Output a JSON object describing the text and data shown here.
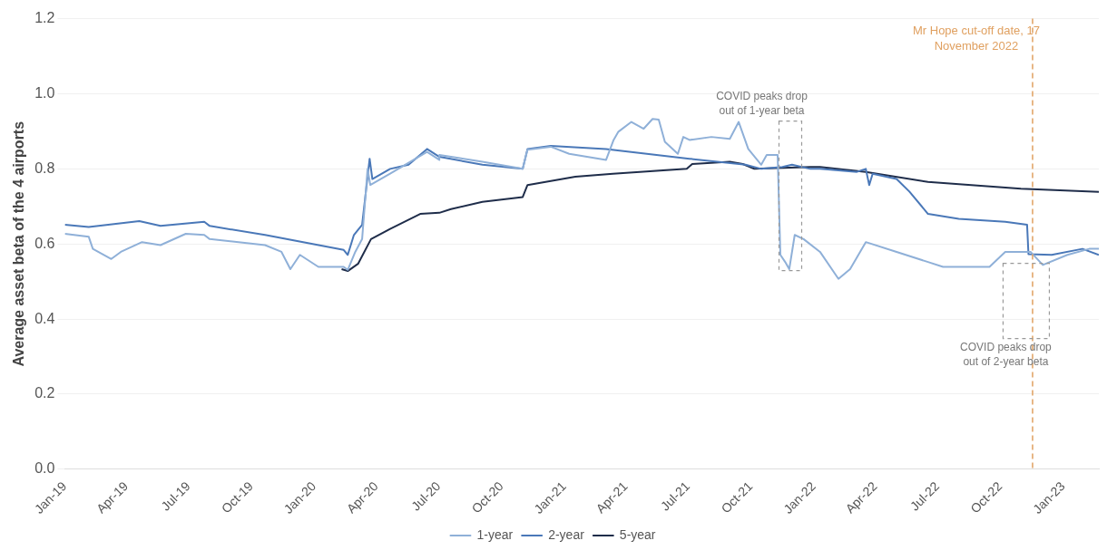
{
  "chart_data": {
    "type": "line",
    "ylabel": "Average asset beta of the 4 airports",
    "xlim": [
      "2019-01-01",
      "2023-02-22"
    ],
    "xticks": [
      {
        "value": "2019-01-01",
        "label": "Jan-19"
      },
      {
        "value": "2019-04-01",
        "label": "Apr-19"
      },
      {
        "value": "2019-07-01",
        "label": "Jul-19"
      },
      {
        "value": "2019-10-01",
        "label": "Oct-19"
      },
      {
        "value": "2020-01-01",
        "label": "Jan-20"
      },
      {
        "value": "2020-04-01",
        "label": "Apr-20"
      },
      {
        "value": "2020-07-01",
        "label": "Jul-20"
      },
      {
        "value": "2020-10-01",
        "label": "Oct-20"
      },
      {
        "value": "2021-01-01",
        "label": "Jan-21"
      },
      {
        "value": "2021-04-01",
        "label": "Apr-21"
      },
      {
        "value": "2021-07-01",
        "label": "Jul-21"
      },
      {
        "value": "2021-10-01",
        "label": "Oct-21"
      },
      {
        "value": "2022-01-01",
        "label": "Jan-22"
      },
      {
        "value": "2022-04-01",
        "label": "Apr-22"
      },
      {
        "value": "2022-07-01",
        "label": "Jul-22"
      },
      {
        "value": "2022-10-01",
        "label": "Oct-22"
      },
      {
        "value": "2023-01-01",
        "label": "Jan-23"
      }
    ],
    "ylim": [
      0,
      1.2
    ],
    "yticks": [
      {
        "value": 0,
        "label": "0.0"
      },
      {
        "value": 0.2,
        "label": "0.2"
      },
      {
        "value": 0.4,
        "label": "0.4"
      },
      {
        "value": 0.6,
        "label": "0.6"
      },
      {
        "value": 0.8,
        "label": "0.8"
      },
      {
        "value": 1,
        "label": "1.0"
      },
      {
        "value": 1.2,
        "label": "1.2"
      }
    ],
    "grid": "y",
    "legend": "bottom",
    "marker": "none",
    "series": [
      {
        "name": "1-year",
        "color": "#8fb0d8",
        "x": [
          "2019-01-01",
          "2019-02-05",
          "2019-02-11",
          "2019-03-10",
          "2019-03-24",
          "2019-04-24",
          "2019-05-21",
          "2019-06-27",
          "2019-07-24",
          "2019-08-01",
          "2019-10-21",
          "2019-11-14",
          "2019-11-27",
          "2019-12-11",
          "2020-01-07",
          "2020-02-13",
          "2020-02-19",
          "2020-03-01",
          "2020-03-11",
          "2020-03-19",
          "2020-03-23",
          "2020-04-21",
          "2020-06-14",
          "2020-07-02",
          "2020-07-02",
          "2020-09-03",
          "2020-11-01",
          "2020-11-08",
          "2020-12-12",
          "2021-01-08",
          "2021-03-03",
          "2021-03-14",
          "2021-03-21",
          "2021-04-09",
          "2021-04-27",
          "2021-05-10",
          "2021-05-19",
          "2021-05-28",
          "2021-06-16",
          "2021-06-24",
          "2021-07-03",
          "2021-08-04",
          "2021-08-31",
          "2021-09-13",
          "2021-09-27",
          "2021-10-16",
          "2021-10-24",
          "2021-11-09",
          "2021-11-13",
          "2021-11-20",
          "2021-11-26",
          "2021-12-04",
          "2021-12-17",
          "2022-01-10",
          "2022-02-06",
          "2022-02-23",
          "2022-03-18",
          "2022-05-02",
          "2022-06-17",
          "2022-07-09",
          "2022-09-15",
          "2022-10-08",
          "2022-11-14",
          "2022-12-02",
          "2023-01-07",
          "2023-02-08",
          "2023-02-22"
        ],
        "values": [
          0.627,
          0.619,
          0.587,
          0.56,
          0.579,
          0.605,
          0.597,
          0.627,
          0.624,
          0.613,
          0.597,
          0.579,
          0.533,
          0.571,
          0.539,
          0.539,
          0.531,
          0.579,
          0.613,
          0.8,
          0.757,
          0.787,
          0.845,
          0.824,
          0.837,
          0.819,
          0.8,
          0.851,
          0.859,
          0.84,
          0.824,
          0.877,
          0.899,
          0.925,
          0.907,
          0.933,
          0.931,
          0.872,
          0.84,
          0.885,
          0.877,
          0.885,
          0.88,
          0.925,
          0.853,
          0.811,
          0.837,
          0.837,
          0.571,
          0.552,
          0.533,
          0.624,
          0.613,
          0.579,
          0.507,
          0.533,
          0.605,
          0.579,
          0.552,
          0.539,
          0.539,
          0.579,
          0.579,
          0.544,
          0.571,
          0.587,
          0.587
        ]
      },
      {
        "name": "2-year",
        "color": "#4a78b8",
        "x": [
          "2019-01-01",
          "2019-02-05",
          "2019-04-20",
          "2019-05-21",
          "2019-07-24",
          "2019-08-01",
          "2019-10-21",
          "2020-02-13",
          "2020-02-19",
          "2020-02-28",
          "2020-03-11",
          "2020-03-22",
          "2020-03-26",
          "2020-04-21",
          "2020-05-18",
          "2020-06-14",
          "2020-07-02",
          "2020-09-03",
          "2020-11-01",
          "2020-11-08",
          "2020-12-12",
          "2021-03-03",
          "2021-07-03",
          "2021-09-23",
          "2021-10-16",
          "2021-11-16",
          "2021-11-30",
          "2021-12-27",
          "2022-01-10",
          "2022-03-05",
          "2022-03-18",
          "2022-03-23",
          "2022-03-28",
          "2022-05-02",
          "2022-05-21",
          "2022-06-17",
          "2022-08-01",
          "2022-10-08",
          "2022-11-09",
          "2022-11-11",
          "2022-12-15",
          "2023-01-29",
          "2023-02-22"
        ],
        "values": [
          0.651,
          0.645,
          0.661,
          0.648,
          0.659,
          0.648,
          0.624,
          0.584,
          0.571,
          0.624,
          0.651,
          0.827,
          0.773,
          0.8,
          0.811,
          0.853,
          0.832,
          0.811,
          0.8,
          0.853,
          0.861,
          0.853,
          0.827,
          0.811,
          0.8,
          0.805,
          0.811,
          0.8,
          0.8,
          0.792,
          0.8,
          0.757,
          0.787,
          0.773,
          0.739,
          0.68,
          0.667,
          0.659,
          0.651,
          0.573,
          0.571,
          0.587,
          0.571
        ]
      },
      {
        "name": "5-year",
        "color": "#1f2d4a",
        "x": [
          "2020-02-10",
          "2020-02-19",
          "2020-03-05",
          "2020-03-24",
          "2020-04-21",
          "2020-06-04",
          "2020-07-02",
          "2020-07-19",
          "2020-09-03",
          "2020-11-01",
          "2020-11-08",
          "2021-01-17",
          "2021-03-13",
          "2021-06-29",
          "2021-07-07",
          "2021-08-31",
          "2021-09-19",
          "2021-10-06",
          "2021-12-27",
          "2022-01-10",
          "2022-03-18",
          "2022-06-17",
          "2022-10-31",
          "2023-02-22"
        ],
        "values": [
          0.533,
          0.528,
          0.547,
          0.613,
          0.64,
          0.68,
          0.683,
          0.693,
          0.712,
          0.725,
          0.757,
          0.779,
          0.787,
          0.8,
          0.813,
          0.819,
          0.813,
          0.8,
          0.805,
          0.805,
          0.792,
          0.765,
          0.747,
          0.739
        ]
      }
    ],
    "ref_lines": [
      {
        "axis": "x",
        "value": "2022-11-17",
        "label": "Mr Hope cut-off date, 17 November 2022",
        "color": "#e0a060",
        "line_style": "dashed"
      }
    ],
    "annotations": [
      "COVID peaks drop out of 1-year beta",
      "COVID peaks drop out of 2-year beta"
    ]
  }
}
